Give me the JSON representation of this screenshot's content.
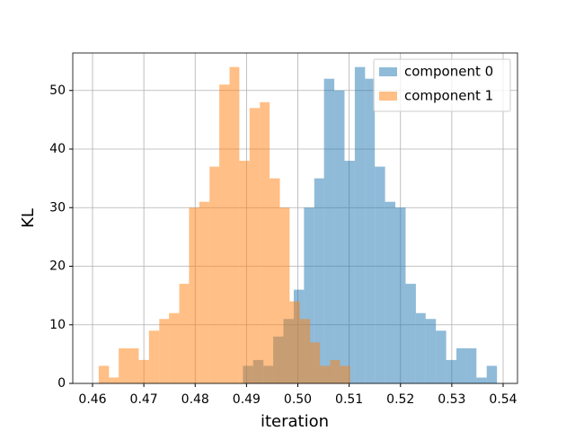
{
  "chart_data": {
    "type": "histogram",
    "xlabel": "iteration",
    "ylabel": "KL",
    "series": [
      {
        "name": "component 0",
        "color": "#1f77b4",
        "bins": [
          0.4893,
          0.4913,
          0.4933,
          0.4952,
          0.4972,
          0.4992,
          0.5012,
          0.5032,
          0.5051,
          0.5071,
          0.5091,
          0.5111,
          0.5131,
          0.515,
          0.517,
          0.519,
          0.521,
          0.523,
          0.5249,
          0.5269,
          0.5289,
          0.5309,
          0.5329,
          0.5348,
          0.5368,
          0.5388
        ],
        "values": [
          3,
          4,
          3,
          8,
          11,
          16,
          30,
          35,
          52,
          50,
          38,
          54,
          52,
          37,
          31,
          30,
          17,
          12,
          11,
          9,
          4,
          6,
          6,
          1,
          3
        ]
      },
      {
        "name": "component 1",
        "color": "#ff7f0e",
        "bins": [
          0.4612,
          0.4632,
          0.4651,
          0.4671,
          0.469,
          0.471,
          0.473,
          0.4749,
          0.4769,
          0.4788,
          0.4808,
          0.4828,
          0.4847,
          0.4867,
          0.4886,
          0.4906,
          0.4926,
          0.4945,
          0.4965,
          0.4984,
          0.5004,
          0.5024,
          0.5043,
          0.5063,
          0.5082,
          0.5102
        ],
        "values": [
          3,
          1,
          6,
          6,
          4,
          9,
          11,
          12,
          17,
          30,
          31,
          37,
          51,
          54,
          38,
          47,
          48,
          35,
          30,
          14,
          11,
          7,
          3,
          4,
          3
        ]
      }
    ],
    "alpha": 0.5,
    "xlim": [
      0.45615,
      0.5428
    ],
    "ylim": [
      0,
      56.4
    ],
    "xticks": [
      0.46,
      0.47,
      0.48,
      0.49,
      {
        "value": 0.5,
        "label": "0.50"
      },
      0.51,
      0.52,
      0.53,
      0.54
    ],
    "yticks": [
      0,
      10,
      20,
      30,
      40,
      50
    ],
    "grid": true,
    "legend": "upper right"
  }
}
